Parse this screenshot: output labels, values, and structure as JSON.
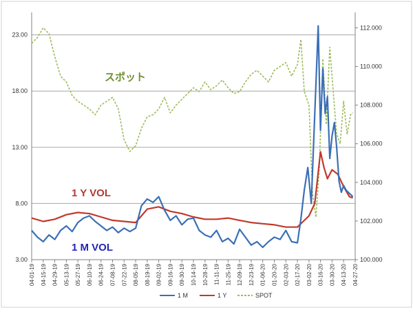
{
  "chart_data": {
    "type": "line",
    "title": "",
    "xlabel": "",
    "ylabel": "",
    "y_left": {
      "min": 3.0,
      "max": 25.0,
      "ticks": [
        "3.00",
        "8.00",
        "13.00",
        "18.00",
        "23.00"
      ],
      "tick_values": [
        3,
        8,
        13,
        18,
        23
      ]
    },
    "y_right": {
      "min": 100.0,
      "max": 112.8,
      "ticks": [
        "100.000",
        "102.000",
        "104.000",
        "106.000",
        "108.000",
        "110.000",
        "112.000"
      ],
      "tick_values": [
        100,
        102,
        104,
        106,
        108,
        110,
        112
      ]
    },
    "grid": "horizontal",
    "x_ticks": [
      "04-01-19",
      "04-15-19",
      "04-29-19",
      "05-13-19",
      "05-27-19",
      "06-10-19",
      "06-24-19",
      "07-08-19",
      "07-22-19",
      "08-05-19",
      "08-19-19",
      "09-02-19",
      "09-16-19",
      "09-30-19",
      "10-14-19",
      "10-28-19",
      "11-11-19",
      "11-25-19",
      "12-09-19",
      "12-23-19",
      "01-06-20",
      "01-20-20",
      "02-03-20",
      "02-17-20",
      "03-02-20",
      "03-16-20",
      "03-30-20",
      "04-13-20",
      "04-27-20"
    ],
    "legend": {
      "placement": "bottom-center",
      "entries": [
        "1 M",
        "1 Y",
        "SPOT"
      ]
    },
    "annotations": [
      {
        "text": "スポット",
        "color": "#6e8f30"
      },
      {
        "text": "1 Y VOL",
        "color": "#b03a34"
      },
      {
        "text": "1 M VOL",
        "color": "#2424b8"
      }
    ],
    "series": [
      {
        "name": "1 M",
        "axis": "left",
        "color": "#3a6fb5",
        "x": [
          0,
          0.5,
          1,
          1.5,
          2,
          2.5,
          3,
          3.5,
          4,
          4.5,
          5,
          5.5,
          6,
          6.5,
          7,
          7.5,
          8,
          8.5,
          9,
          9.5,
          10,
          10.5,
          11,
          11.5,
          12,
          12.5,
          13,
          13.5,
          14,
          14.5,
          15,
          15.5,
          16,
          16.5,
          17,
          17.5,
          18,
          18.5,
          19,
          19.5,
          20,
          20.5,
          21,
          21.5,
          22,
          22.5,
          23,
          23.3,
          23.6,
          23.9,
          24.2,
          24.5,
          24.8,
          25.0,
          25.2,
          25.4,
          25.6,
          25.8,
          26,
          26.2,
          26.4,
          26.6,
          26.8,
          27,
          27.2,
          27.4,
          27.6,
          27.8
        ],
        "values": [
          5.6,
          5.0,
          4.6,
          5.2,
          4.8,
          5.6,
          6.0,
          5.5,
          6.3,
          6.7,
          6.9,
          6.4,
          6.0,
          5.6,
          5.9,
          5.4,
          5.8,
          5.5,
          5.8,
          7.8,
          8.4,
          8.1,
          8.6,
          7.4,
          6.5,
          6.9,
          6.1,
          6.6,
          6.7,
          5.6,
          5.2,
          5.0,
          5.6,
          4.6,
          4.9,
          4.4,
          5.7,
          5.0,
          4.3,
          4.6,
          4.1,
          4.6,
          5.0,
          4.8,
          5.6,
          4.6,
          4.5,
          6.6,
          9.2,
          11.2,
          8.0,
          16.0,
          23.8,
          14.5,
          20.0,
          16.0,
          17.5,
          12.0,
          14.0,
          15.2,
          13.0,
          10.0,
          9.0,
          9.6,
          9.2,
          9.0,
          8.8,
          8.6
        ]
      },
      {
        "name": "1 Y",
        "axis": "left",
        "color": "#c0392b",
        "x": [
          0,
          1,
          2,
          3,
          4,
          5,
          6,
          7,
          8,
          9,
          10,
          11,
          12,
          13,
          14,
          15,
          16,
          17,
          18,
          19,
          20,
          21,
          22,
          23,
          23.5,
          24,
          24.5,
          25,
          25.3,
          25.6,
          26,
          26.5,
          27,
          27.5,
          27.8
        ],
        "values": [
          6.7,
          6.4,
          6.6,
          7.0,
          7.2,
          7.1,
          6.8,
          6.5,
          6.4,
          6.3,
          7.5,
          7.7,
          7.3,
          7.1,
          6.8,
          6.6,
          6.6,
          6.7,
          6.5,
          6.3,
          6.2,
          6.1,
          5.9,
          5.9,
          6.4,
          6.9,
          8.0,
          12.6,
          11.2,
          10.2,
          11.0,
          10.6,
          9.5,
          8.6,
          8.5
        ]
      },
      {
        "name": "SPOT",
        "axis": "right",
        "color": "#9bbb59",
        "x": [
          0,
          0.5,
          1,
          1.5,
          2,
          2.5,
          3,
          3.5,
          4,
          4.5,
          5,
          5.5,
          6,
          6.5,
          7,
          7.5,
          8,
          8.5,
          9,
          9.5,
          10,
          10.5,
          11,
          11.5,
          12,
          12.5,
          13,
          13.5,
          14,
          14.5,
          15,
          15.5,
          16,
          16.5,
          17,
          17.5,
          18,
          18.5,
          19,
          19.5,
          20,
          20.5,
          21,
          21.5,
          22,
          22.5,
          23,
          23.3,
          23.6,
          24,
          24.3,
          24.6,
          24.9,
          25.2,
          25.5,
          25.8,
          26.1,
          26.4,
          26.7,
          27,
          27.3,
          27.6,
          27.8
        ],
        "values": [
          111.2,
          111.5,
          112.0,
          111.7,
          110.5,
          109.5,
          109.2,
          108.5,
          108.2,
          108.0,
          107.8,
          107.5,
          108.0,
          108.2,
          108.4,
          107.8,
          106.2,
          105.6,
          105.9,
          106.8,
          107.4,
          107.5,
          107.8,
          108.4,
          107.6,
          108.0,
          108.3,
          108.6,
          108.9,
          108.7,
          109.2,
          108.8,
          109.0,
          109.3,
          108.9,
          108.6,
          108.7,
          109.2,
          109.6,
          109.8,
          109.5,
          109.2,
          109.8,
          110.0,
          110.2,
          109.5,
          110.1,
          111.4,
          108.7,
          108.0,
          103.5,
          102.2,
          104.8,
          110.4,
          107.0,
          111.0,
          108.7,
          106.5,
          106.0,
          108.2,
          106.5,
          107.5,
          107.6
        ]
      }
    ]
  }
}
